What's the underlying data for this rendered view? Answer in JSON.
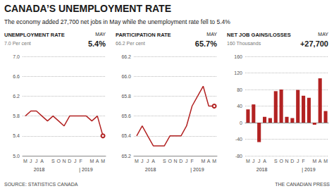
{
  "title": "CANADA’S UNEMPLOYMENT RATE",
  "subtitle": "The economy added 27,700 net jobs in May while the unemployment rate fell to 5.4%",
  "annotations": [
    "SOURCE: STATISTICS CANADA",
    "THE CANADIAN PRESS"
  ],
  "chart_data": [
    {
      "type": "line",
      "title": "UNEMPLOYMENT RATE",
      "annotations": [
        "7.0 Per cent",
        "MAY",
        "5.4%",
        "2018",
        "| 2019"
      ],
      "categories": [
        "M",
        "J",
        "J",
        "A",
        null,
        "S",
        "O",
        "N",
        "D",
        "J",
        "F",
        null,
        "M",
        "A",
        "M"
      ],
      "values": [
        5.8,
        5.9,
        5.9,
        5.8,
        5.7,
        5.8,
        5.7,
        5.6,
        5.8,
        5.8,
        5.8,
        5.8,
        5.7,
        5.8,
        5.4
      ],
      "color": "#b22222",
      "ylim": [
        5.0,
        7.0
      ],
      "yticks": [
        {
          "value": 5.0,
          "label": "5.0"
        },
        5.4,
        5.8,
        6.2,
        6.6,
        {
          "value": 7.0,
          "label": "7.0"
        }
      ],
      "grid": true
    },
    {
      "type": "line",
      "title": "PARTICIPATION RATE",
      "annotations": [
        "66.2 Per cent",
        "MAY",
        "65.7%",
        "2018",
        "| 2019"
      ],
      "categories": [
        "M",
        "J",
        "J",
        "A",
        null,
        "S",
        "O",
        "N",
        "D",
        "J",
        "F",
        null,
        "M",
        "A",
        "M"
      ],
      "values": [
        65.4,
        65.5,
        65.4,
        65.3,
        65.3,
        65.3,
        65.4,
        65.4,
        65.4,
        65.5,
        65.7,
        65.8,
        65.9,
        65.7,
        65.7
      ],
      "color": "#b22222",
      "ylim": [
        65.2,
        66.2
      ],
      "yticks": [
        65.2,
        65.4,
        65.6,
        65.8,
        {
          "value": 66.0,
          "label": "66.0"
        },
        66.2
      ],
      "grid": true
    },
    {
      "type": "bar",
      "title": "NET JOB GAINS/LOSSES",
      "annotations": [
        "160 Thousands",
        "MAY",
        "+27,700",
        "2018",
        "| 2019"
      ],
      "categories": [
        "M",
        "J",
        "J",
        "A",
        null,
        "S",
        "O",
        "N",
        "D",
        "J",
        "F",
        null,
        "M",
        "A",
        "M"
      ],
      "values": [
        32,
        44,
        -47,
        14,
        11,
        76,
        80,
        14,
        11,
        79,
        65,
        60,
        -5,
        107,
        28
      ],
      "color": "#b22222",
      "ylim": [
        -80,
        160
      ],
      "yticks": [
        -80,
        -40,
        0,
        40,
        80,
        120,
        160
      ],
      "grid": true
    }
  ]
}
